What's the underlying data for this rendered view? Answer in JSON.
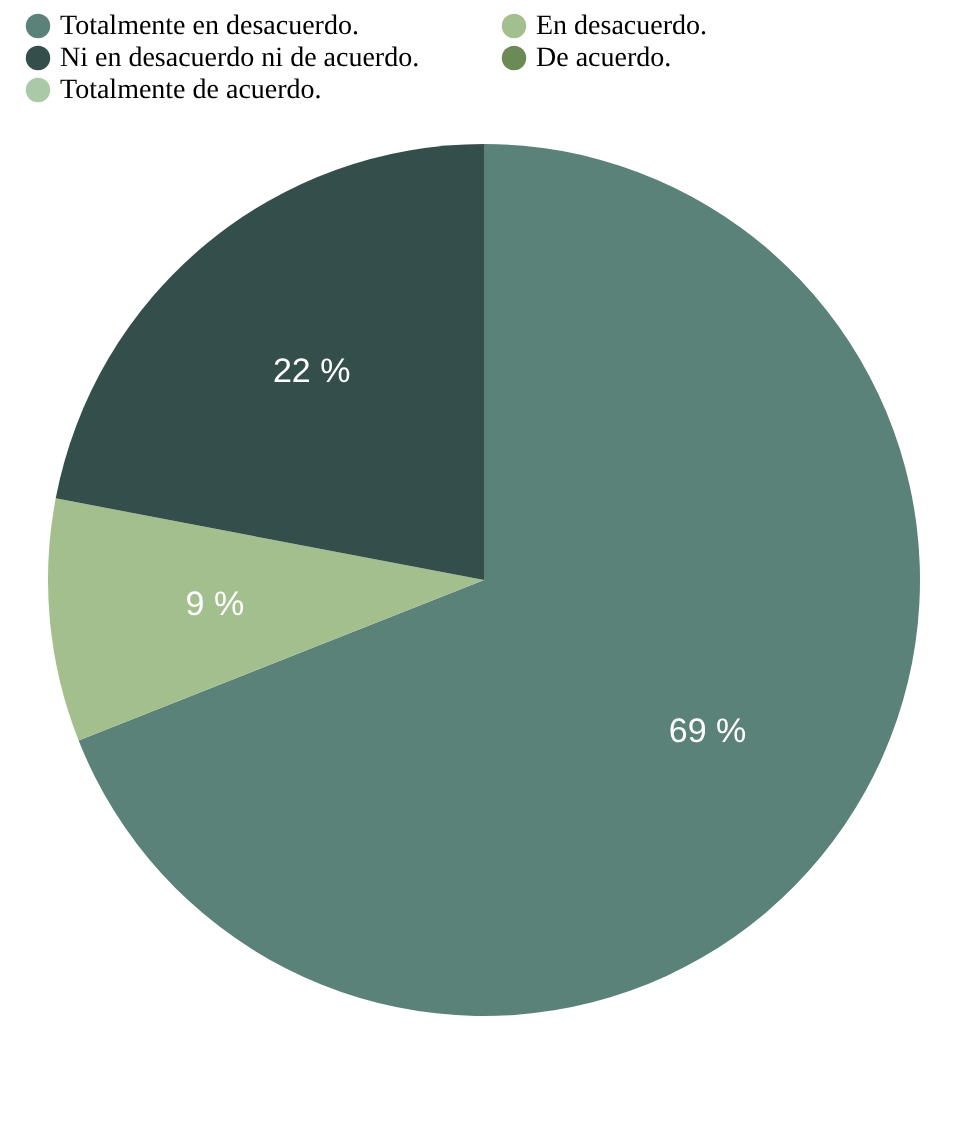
{
  "chart_data": {
    "type": "pie",
    "categories": [
      "Totalmente en desacuerdo.",
      "En desacuerdo.",
      "Ni en desacuerdo ni de acuerdo.",
      "De acuerdo.",
      "Totalmente de acuerdo."
    ],
    "values": [
      69,
      9,
      22,
      0,
      0
    ],
    "colors": [
      "#5b8279",
      "#a3bf8e",
      "#344e4b",
      "#6b8a55",
      "#a9c9a7"
    ],
    "value_labels": [
      "69 %",
      "9 %",
      "22 %",
      null,
      null
    ],
    "legend": "top left"
  }
}
